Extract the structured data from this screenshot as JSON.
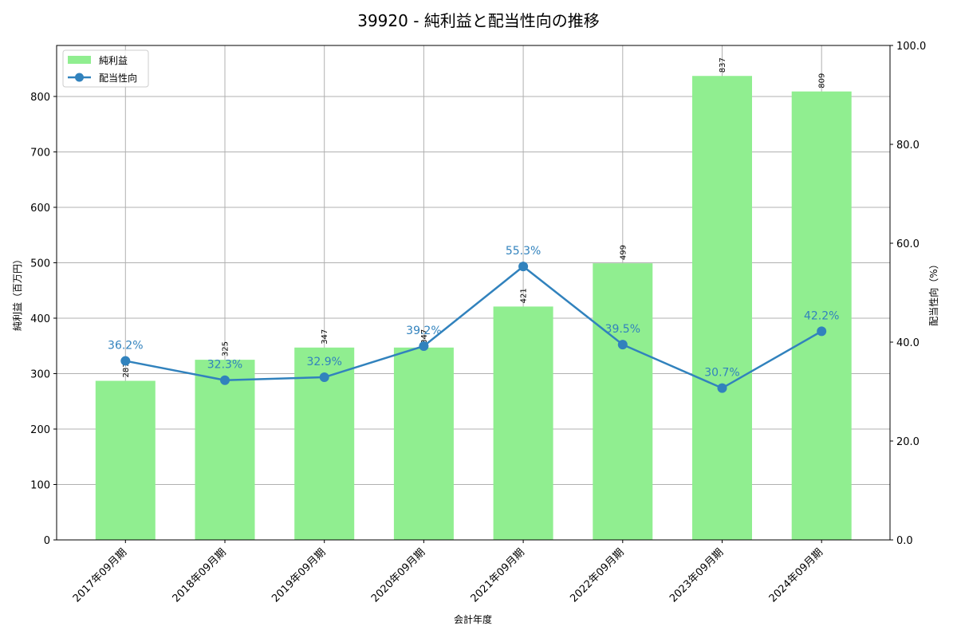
{
  "chart_data": {
    "type": "bar+line",
    "title": "39920 - 純利益と配当性向の推移",
    "xlabel": "会計年度",
    "ylabel_left": "純利益（百万円）",
    "ylabel_right": "配当性向（%）",
    "categories": [
      "2017年09月期",
      "2018年09月期",
      "2019年09月期",
      "2020年09月期",
      "2021年09月期",
      "2022年09月期",
      "2023年09月期",
      "2024年09月期"
    ],
    "series": [
      {
        "name": "純利益",
        "type": "bar",
        "axis": "left",
        "color": "#90ee90",
        "values": [
          287,
          325,
          347,
          347,
          421,
          499,
          837,
          809
        ],
        "labels": [
          "287",
          "325",
          "347",
          "347",
          "421",
          "499",
          "837",
          "809"
        ]
      },
      {
        "name": "配当性向",
        "type": "line",
        "axis": "right",
        "color": "#3182bd",
        "values": [
          36.2,
          32.3,
          32.9,
          39.2,
          55.3,
          39.5,
          30.7,
          42.2
        ],
        "labels": [
          "36.2%",
          "32.3%",
          "32.9%",
          "39.2%",
          "55.3%",
          "39.5%",
          "30.7%",
          "42.2%"
        ]
      }
    ],
    "ylim_left": [
      0,
      892
    ],
    "yticks_left": [
      0,
      100,
      200,
      300,
      400,
      500,
      600,
      700,
      800
    ],
    "ylim_right": [
      0,
      100
    ],
    "yticks_right": [
      "0.0",
      "20.0",
      "40.0",
      "60.0",
      "80.0",
      "100.0"
    ],
    "grid": true,
    "legend_position": "upper left"
  }
}
